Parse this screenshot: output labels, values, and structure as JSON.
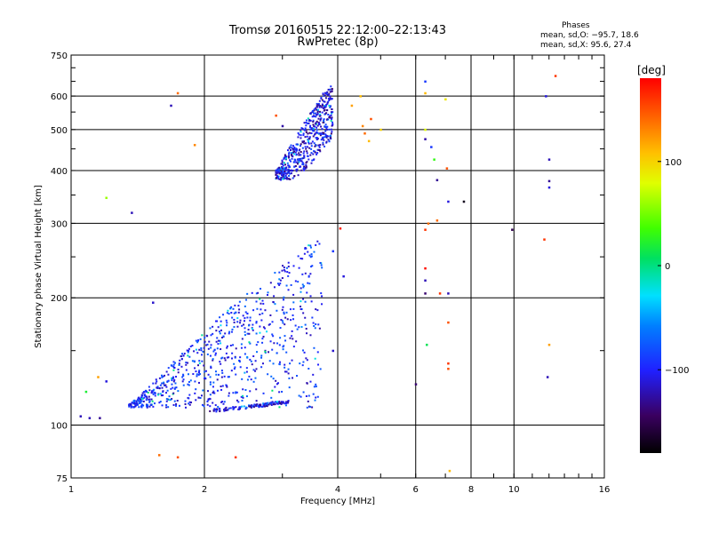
{
  "chart_data": {
    "type": "scatter",
    "title": "Tromsø 20160515 22:12:00–22:13:43",
    "subtitle": "RwPretec (8p)",
    "xlabel": "Frequency [MHz]",
    "ylabel": "Stationary phase Virtual Height [km]",
    "x_scale": "log",
    "y_scale": "log",
    "xlim": [
      1,
      16
    ],
    "ylim": [
      75,
      750
    ],
    "x_ticks": [
      "1",
      "2",
      "4",
      "6",
      "8",
      "10",
      "16"
    ],
    "y_ticks": [
      "75",
      "100",
      "200",
      "300",
      "400",
      "500",
      "600",
      "750"
    ],
    "grid": true,
    "stats": {
      "heading": "Phases",
      "line_o": "mean, sd,O: −95.7, 18.6",
      "line_x": "mean, sd,X:  95.6, 27.4"
    },
    "colorbar": {
      "label": "[deg]",
      "ticks": [
        "100",
        "0",
        "−100"
      ],
      "range": [
        -180,
        180
      ]
    },
    "clusters": [
      {
        "region": "F-layer echo",
        "x_range": [
          2.9,
          3.9
        ],
        "y_range": [
          380,
          650
        ],
        "phase_mean": -110
      },
      {
        "region": "lower E/F trace",
        "x_range": [
          1.35,
          3.7
        ],
        "y_range": [
          105,
          290
        ],
        "phase_mean": -95
      },
      {
        "region": "bottom trace",
        "x_range": [
          2.05,
          3.1
        ],
        "y_range": [
          107,
          114
        ],
        "phase_mean": -110
      }
    ],
    "scattered_points": [
      {
        "x": 1.05,
        "y": 105,
        "phase": -120
      },
      {
        "x": 1.1,
        "y": 104,
        "phase": -120
      },
      {
        "x": 1.16,
        "y": 104,
        "phase": -130
      },
      {
        "x": 1.08,
        "y": 120,
        "phase": 20
      },
      {
        "x": 1.2,
        "y": 127,
        "phase": -110
      },
      {
        "x": 1.15,
        "y": 130,
        "phase": 120
      },
      {
        "x": 1.2,
        "y": 345,
        "phase": 60
      },
      {
        "x": 1.37,
        "y": 318,
        "phase": -120
      },
      {
        "x": 1.53,
        "y": 195,
        "phase": -115
      },
      {
        "x": 1.68,
        "y": 570,
        "phase": -120
      },
      {
        "x": 1.74,
        "y": 610,
        "phase": 140
      },
      {
        "x": 1.58,
        "y": 85,
        "phase": 140
      },
      {
        "x": 1.74,
        "y": 84,
        "phase": 150
      },
      {
        "x": 1.9,
        "y": 460,
        "phase": 130
      },
      {
        "x": 2.35,
        "y": 84,
        "phase": 160
      },
      {
        "x": 2.9,
        "y": 540,
        "phase": 150
      },
      {
        "x": 3.0,
        "y": 510,
        "phase": -125
      },
      {
        "x": 3.9,
        "y": 258,
        "phase": -90
      },
      {
        "x": 4.05,
        "y": 292,
        "phase": 170
      },
      {
        "x": 4.12,
        "y": 225,
        "phase": -110
      },
      {
        "x": 3.9,
        "y": 150,
        "phase": -115
      },
      {
        "x": 4.3,
        "y": 570,
        "phase": 120
      },
      {
        "x": 4.5,
        "y": 600,
        "phase": 110
      },
      {
        "x": 4.55,
        "y": 510,
        "phase": 130
      },
      {
        "x": 4.6,
        "y": 490,
        "phase": 140
      },
      {
        "x": 4.75,
        "y": 530,
        "phase": 150
      },
      {
        "x": 4.7,
        "y": 470,
        "phase": 110
      },
      {
        "x": 5.0,
        "y": 500,
        "phase": 100
      },
      {
        "x": 6.0,
        "y": 125,
        "phase": -140
      },
      {
        "x": 6.3,
        "y": 650,
        "phase": -90
      },
      {
        "x": 6.3,
        "y": 610,
        "phase": 110
      },
      {
        "x": 6.3,
        "y": 500,
        "phase": 80
      },
      {
        "x": 6.3,
        "y": 475,
        "phase": -125
      },
      {
        "x": 6.4,
        "y": 300,
        "phase": 140
      },
      {
        "x": 6.3,
        "y": 290,
        "phase": 160
      },
      {
        "x": 6.3,
        "y": 235,
        "phase": 175
      },
      {
        "x": 6.3,
        "y": 205,
        "phase": -140
      },
      {
        "x": 6.35,
        "y": 155,
        "phase": 10
      },
      {
        "x": 6.3,
        "y": 220,
        "phase": -120
      },
      {
        "x": 6.5,
        "y": 455,
        "phase": -90
      },
      {
        "x": 6.6,
        "y": 425,
        "phase": 30
      },
      {
        "x": 6.7,
        "y": 380,
        "phase": -130
      },
      {
        "x": 6.7,
        "y": 305,
        "phase": 140
      },
      {
        "x": 6.8,
        "y": 205,
        "phase": 160
      },
      {
        "x": 7.0,
        "y": 590,
        "phase": 90
      },
      {
        "x": 7.05,
        "y": 405,
        "phase": 150
      },
      {
        "x": 7.1,
        "y": 338,
        "phase": -110
      },
      {
        "x": 7.1,
        "y": 205,
        "phase": -120
      },
      {
        "x": 7.1,
        "y": 175,
        "phase": 150
      },
      {
        "x": 7.1,
        "y": 140,
        "phase": 160
      },
      {
        "x": 7.1,
        "y": 136,
        "phase": 150
      },
      {
        "x": 7.15,
        "y": 78,
        "phase": 110
      },
      {
        "x": 7.7,
        "y": 338,
        "phase": -170
      },
      {
        "x": 9.9,
        "y": 290,
        "phase": -150
      },
      {
        "x": 11.8,
        "y": 600,
        "phase": -110
      },
      {
        "x": 12.0,
        "y": 425,
        "phase": -120
      },
      {
        "x": 12.0,
        "y": 378,
        "phase": -130
      },
      {
        "x": 12.0,
        "y": 365,
        "phase": -110
      },
      {
        "x": 12.0,
        "y": 155,
        "phase": 120
      },
      {
        "x": 11.9,
        "y": 130,
        "phase": -120
      },
      {
        "x": 11.7,
        "y": 275,
        "phase": 160
      },
      {
        "x": 12.4,
        "y": 670,
        "phase": 160
      }
    ]
  }
}
